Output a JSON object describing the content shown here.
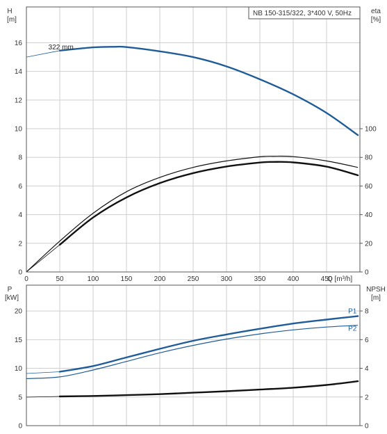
{
  "colors": {
    "blue": "#1f5c99",
    "black": "#111111",
    "grid": "#cfcfcf",
    "frame": "#555555"
  },
  "chart_data": [
    {
      "type": "line",
      "title": "NB 150-315/322, 3*400 V, 50Hz",
      "xlabel": "Q [m³/h]",
      "x_ticks": [
        "0",
        "50",
        "100",
        "150",
        "200",
        "250",
        "300",
        "350",
        "400",
        "450"
      ],
      "xlim": [
        0,
        500
      ],
      "y_left": {
        "label_top": "H",
        "label_unit": "[m]",
        "ticks": [
          "0",
          "2",
          "4",
          "6",
          "8",
          "10",
          "12",
          "14",
          "16"
        ],
        "lim": [
          0,
          18.5
        ]
      },
      "y_right": {
        "label_top": "eta",
        "label_unit": "[%]",
        "ticks": [
          "0",
          "20",
          "40",
          "60",
          "80",
          "100"
        ],
        "lim": [
          0,
          185
        ]
      },
      "grid": true,
      "series": [
        {
          "name": "322 mm",
          "axis": "left",
          "color": "#1f5c99",
          "x": [
            0,
            50,
            100,
            130,
            150,
            200,
            250,
            300,
            350,
            400,
            450,
            497
          ],
          "y": [
            15.0,
            15.45,
            15.68,
            15.72,
            15.7,
            15.4,
            15.0,
            14.35,
            13.45,
            12.4,
            11.1,
            9.55
          ],
          "x_thin_until": 50
        },
        {
          "name": "",
          "axis": "right",
          "color": "#111111",
          "x": [
            0,
            50,
            100,
            150,
            200,
            250,
            300,
            350,
            370,
            400,
            450,
            497
          ],
          "y": [
            0,
            19,
            38,
            52,
            62,
            69,
            73.6,
            76.4,
            76.8,
            76.5,
            73.5,
            67.5
          ],
          "x_thin_until": 50
        },
        {
          "name": "",
          "axis": "right",
          "color": "#111111",
          "x": [
            0,
            50,
            100,
            150,
            200,
            250,
            300,
            350,
            370,
            400,
            450,
            497
          ],
          "y": [
            0,
            21.5,
            41,
            56,
            66,
            73,
            77.5,
            80.4,
            80.8,
            80.5,
            77.5,
            73.0
          ],
          "x_thin_until": 9999,
          "thin": true
        }
      ]
    },
    {
      "type": "line",
      "xlim": [
        0,
        500
      ],
      "y_left": {
        "label_top": "P",
        "label_unit": "[kW]",
        "ticks": [
          "0",
          "5",
          "10",
          "15",
          "20"
        ],
        "lim": [
          0,
          24.5
        ]
      },
      "y_right": {
        "label_top": "NPSH",
        "label_unit": "[m]",
        "ticks": [
          "0",
          "2",
          "4",
          "6",
          "8"
        ],
        "lim": [
          0,
          9.8
        ]
      },
      "grid": true,
      "series": [
        {
          "name": "P1",
          "axis": "left",
          "color": "#1f5c99",
          "x": [
            0,
            50,
            100,
            150,
            200,
            250,
            300,
            350,
            400,
            450,
            497
          ],
          "y": [
            9.1,
            9.4,
            10.4,
            11.9,
            13.4,
            14.8,
            15.9,
            16.9,
            17.8,
            18.5,
            19.1
          ],
          "x_thin_until": 50,
          "label_at": "end"
        },
        {
          "name": "P2",
          "axis": "left",
          "color": "#1f5c99",
          "x": [
            0,
            50,
            100,
            150,
            200,
            250,
            300,
            350,
            400,
            450,
            497
          ],
          "y": [
            8.2,
            8.5,
            9.7,
            11.2,
            12.7,
            14.0,
            15.1,
            16.0,
            16.7,
            17.2,
            17.5
          ],
          "x_thin_until": 9999,
          "thin": true,
          "label_at": "end"
        },
        {
          "name": "",
          "axis": "right",
          "color": "#111111",
          "x": [
            0,
            50,
            100,
            150,
            200,
            250,
            300,
            350,
            400,
            450,
            497
          ],
          "y": [
            1.99,
            2.04,
            2.07,
            2.13,
            2.2,
            2.3,
            2.4,
            2.52,
            2.65,
            2.84,
            3.1
          ],
          "x_thin_until": 50
        }
      ]
    }
  ]
}
